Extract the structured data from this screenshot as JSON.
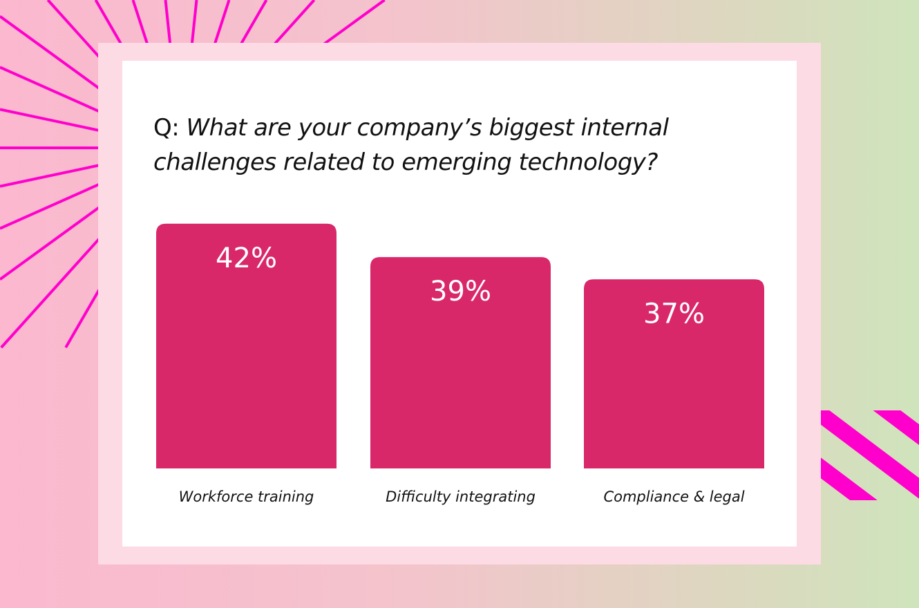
{
  "colors": {
    "bar": "#d9286a",
    "accent_lines": "#ff00cc",
    "bar_label": "#ffffff",
    "frame": "#fddbe4"
  },
  "chart_data": {
    "type": "bar",
    "title_prefix": "Q:",
    "title": "What are your company’s biggest internal challenges related to emerging technology?",
    "categories": [
      "Workforce training",
      "Difficulty integrating",
      "Compliance & legal"
    ],
    "values": [
      42,
      39,
      37
    ],
    "data_labels": [
      "42%",
      "39%",
      "37%"
    ],
    "xlabel": "",
    "ylabel": "",
    "grid": false
  }
}
